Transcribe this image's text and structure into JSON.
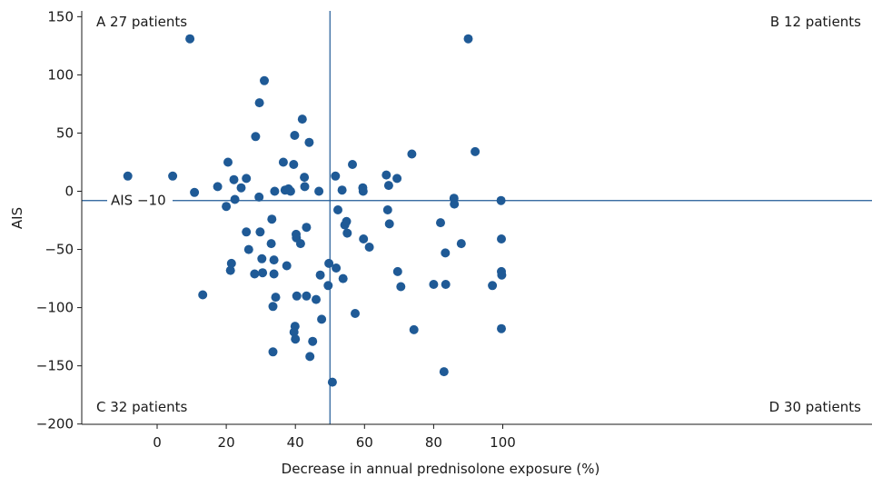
{
  "colors": {
    "point": "#1f5a96",
    "reference_line": "#1f5a96",
    "axis": "#1a1a1a"
  },
  "chart_data": {
    "type": "scatter",
    "xlabel": "Decrease in annual prednisolone exposure (%)",
    "ylabel": "AIS",
    "xlim": [
      -10,
      103
    ],
    "ylim": [
      -200,
      155
    ],
    "x_ticks": [
      0,
      20,
      40,
      60,
      80,
      100
    ],
    "y_ticks": [
      -200,
      -150,
      -100,
      -50,
      0,
      50,
      100,
      150
    ],
    "grid": false,
    "reference_lines": {
      "vertical_x": 50,
      "horizontal_y": -8,
      "horizontal_label": "AIS −10"
    },
    "quadrant_labels": [
      {
        "id": "A",
        "text": "A 27 patients",
        "position": "top-left"
      },
      {
        "id": "B",
        "text": "B 12 patients",
        "position": "top-right"
      },
      {
        "id": "C",
        "text": "C 32 patients",
        "position": "bottom-left"
      },
      {
        "id": "D",
        "text": "D 30 patients",
        "position": "bottom-right"
      }
    ],
    "points": [
      [
        -8.5,
        13
      ],
      [
        4.5,
        13
      ],
      [
        9.5,
        131
      ],
      [
        10.8,
        -1
      ],
      [
        13.2,
        -89
      ],
      [
        17.5,
        4
      ],
      [
        20,
        -13
      ],
      [
        20.5,
        25
      ],
      [
        21.2,
        -68
      ],
      [
        21.5,
        -62
      ],
      [
        22.2,
        10
      ],
      [
        22.5,
        -7
      ],
      [
        24.3,
        3
      ],
      [
        25.8,
        11
      ],
      [
        25.8,
        -35
      ],
      [
        26.5,
        -50
      ],
      [
        28.2,
        -71
      ],
      [
        28.5,
        47
      ],
      [
        29.5,
        -5
      ],
      [
        29.6,
        76
      ],
      [
        29.8,
        -35
      ],
      [
        30.3,
        -58
      ],
      [
        30.5,
        -70
      ],
      [
        31,
        95
      ],
      [
        33,
        -45
      ],
      [
        33.2,
        -24
      ],
      [
        33.5,
        -138
      ],
      [
        33.5,
        -99
      ],
      [
        33.8,
        -59
      ],
      [
        33.8,
        -71
      ],
      [
        34,
        0
      ],
      [
        34.3,
        -91
      ],
      [
        36.5,
        25
      ],
      [
        37,
        1
      ],
      [
        37.5,
        -64
      ],
      [
        38,
        2
      ],
      [
        38.6,
        0
      ],
      [
        39.5,
        23
      ],
      [
        39.6,
        -121
      ],
      [
        39.8,
        48
      ],
      [
        39.9,
        -116
      ],
      [
        40,
        -127
      ],
      [
        40.2,
        -37
      ],
      [
        40.3,
        -40
      ],
      [
        40.4,
        -90
      ],
      [
        41.5,
        -45
      ],
      [
        42,
        62
      ],
      [
        42.6,
        12
      ],
      [
        42.7,
        4
      ],
      [
        43.2,
        -31
      ],
      [
        43.2,
        -90
      ],
      [
        44,
        42
      ],
      [
        44.2,
        -142
      ],
      [
        45,
        -129
      ],
      [
        46,
        -93
      ],
      [
        46.8,
        0
      ],
      [
        47.2,
        -72
      ],
      [
        47.6,
        -110
      ],
      [
        49.5,
        -81
      ],
      [
        49.7,
        -62
      ],
      [
        50.7,
        -164
      ],
      [
        51.6,
        13
      ],
      [
        51.8,
        -66
      ],
      [
        52.3,
        -16
      ],
      [
        53.5,
        1
      ],
      [
        53.8,
        -75
      ],
      [
        54.3,
        -29
      ],
      [
        54.8,
        -26
      ],
      [
        55,
        -36
      ],
      [
        56.5,
        23
      ],
      [
        57.3,
        -105
      ],
      [
        59.5,
        3
      ],
      [
        59.6,
        0
      ],
      [
        59.7,
        -41
      ],
      [
        61.4,
        -48
      ],
      [
        66.3,
        14
      ],
      [
        66.7,
        -16
      ],
      [
        67,
        5
      ],
      [
        67.2,
        -28
      ],
      [
        69.4,
        11
      ],
      [
        69.6,
        -69
      ],
      [
        70.5,
        -82
      ],
      [
        73.7,
        32
      ],
      [
        74.3,
        -119
      ],
      [
        80,
        -80
      ],
      [
        82,
        -27
      ],
      [
        83,
        -155
      ],
      [
        83.4,
        -53
      ],
      [
        83.5,
        -80
      ],
      [
        85.9,
        -6
      ],
      [
        86,
        -11
      ],
      [
        88,
        -45
      ],
      [
        90,
        131
      ],
      [
        92,
        34
      ],
      [
        97,
        -81
      ],
      [
        99.5,
        -8
      ],
      [
        99.6,
        -41
      ],
      [
        99.6,
        -69
      ],
      [
        99.7,
        -72
      ],
      [
        99.6,
        -118
      ]
    ]
  }
}
